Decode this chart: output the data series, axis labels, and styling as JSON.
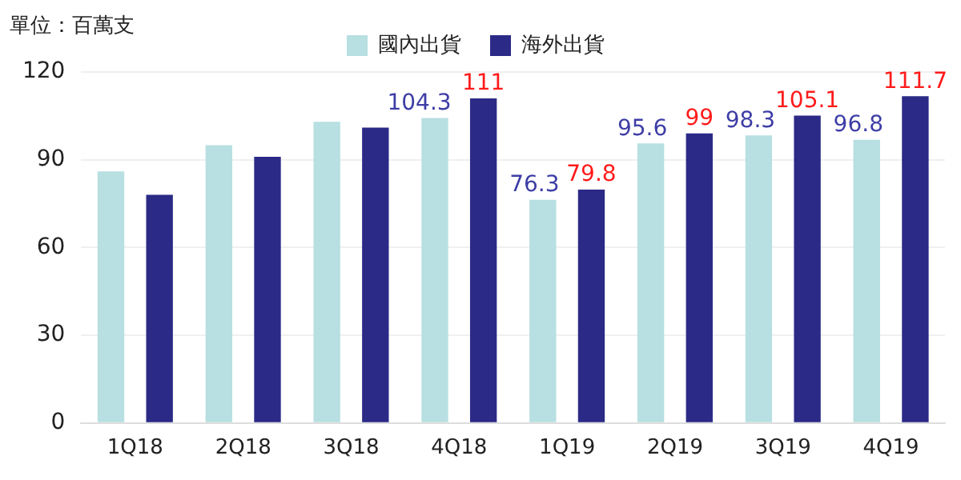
{
  "chart_data": {
    "type": "bar",
    "ylabel": "單位：百萬支",
    "categories": [
      "1Q18",
      "2Q18",
      "3Q18",
      "4Q18",
      "1Q19",
      "2Q19",
      "3Q19",
      "4Q19"
    ],
    "series": [
      {
        "name": "國內出貨",
        "color": "#b8dfe2",
        "values": [
          86,
          95,
          103,
          104.3,
          76.3,
          95.6,
          98.3,
          96.8
        ],
        "value_labels": [
          null,
          null,
          null,
          "104.3",
          "76.3",
          "95.6",
          "98.3",
          "96.8"
        ]
      },
      {
        "name": "海外出貨",
        "color": "#2b2a87",
        "values": [
          78,
          91,
          101,
          111,
          79.8,
          99,
          105.1,
          111.7
        ],
        "value_labels": [
          null,
          null,
          null,
          "111",
          "79.8",
          "99",
          "105.1",
          "111.7"
        ]
      }
    ],
    "ylim": [
      0,
      120
    ],
    "yticks": [
      0,
      30,
      60,
      90,
      120
    ],
    "grid": "y",
    "legend": "top"
  }
}
